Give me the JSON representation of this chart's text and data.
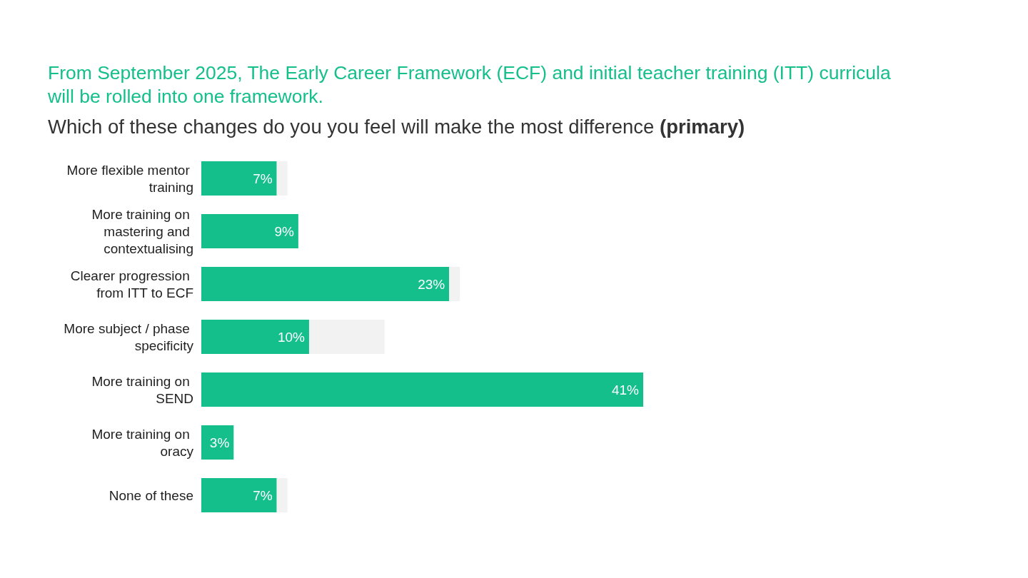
{
  "chart_data": {
    "type": "bar",
    "orientation": "horizontal",
    "stacked": true,
    "title": "From September 2025, The Early Career Framework (ECF) and initial teacher training (ITT) curricula will be rolled into one framework.",
    "subtitle": "Which of these changes do you you feel will make the most difference (primary)",
    "categories": [
      "More flexible mentor training",
      "More training on mastering and contextualising",
      "Clearer progression from ITT to ECF",
      "More subject / phase specificity",
      "More training on SEND",
      "More training on oracy",
      "None of these"
    ],
    "series": [
      {
        "color": "#14bf8c",
        "values": [
          7,
          9,
          23,
          10,
          41,
          3,
          7
        ],
        "value_labels": [
          "7%",
          "9%",
          "23%",
          "10%",
          "41%",
          "3%",
          "7%"
        ]
      },
      {
        "color": "#f2f2f2",
        "values": [
          1,
          null,
          1,
          7,
          null,
          null,
          1
        ]
      }
    ]
  }
}
